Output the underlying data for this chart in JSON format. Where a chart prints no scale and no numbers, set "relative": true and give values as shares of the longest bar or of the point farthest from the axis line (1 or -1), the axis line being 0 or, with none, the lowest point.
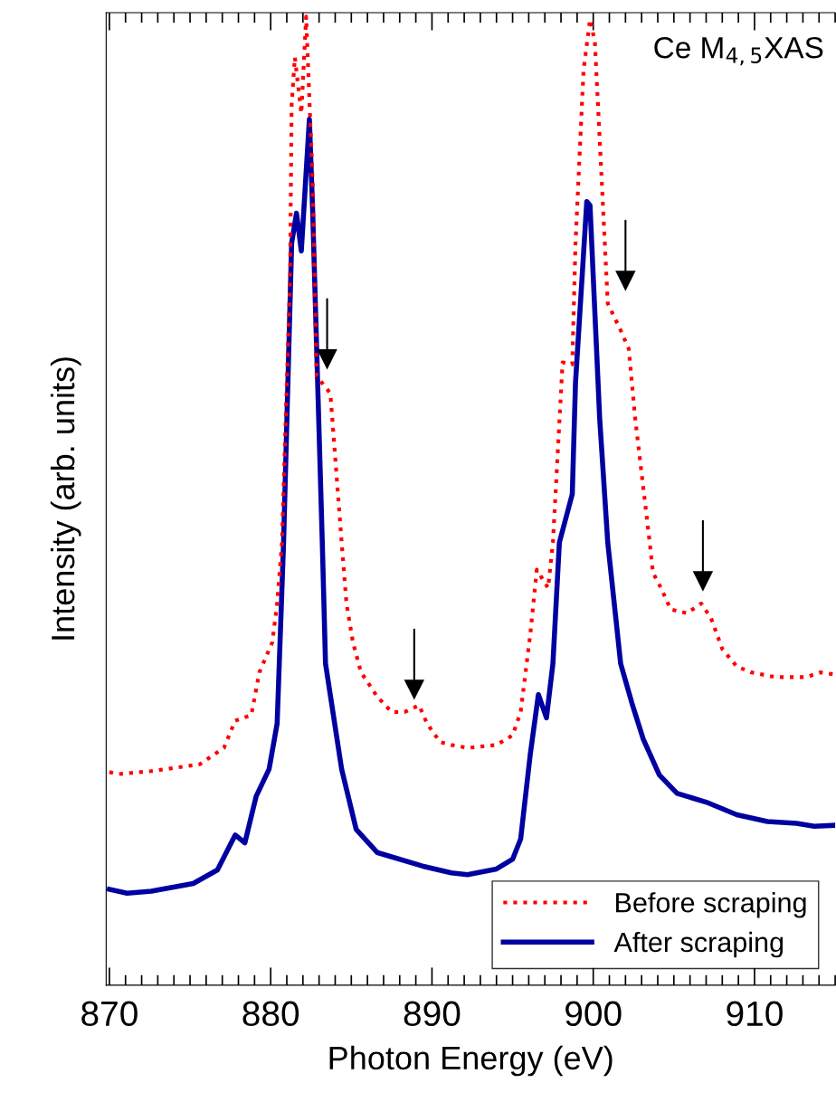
{
  "chart_data": {
    "type": "line",
    "relative": true,
    "xlabel": "Photon Energy (eV)",
    "ylabel": "Intensity (arb. units)",
    "annotations": [
      "Ce M$_{4,5}$XAS"
    ],
    "xlim": [
      869.8,
      915
    ],
    "xticks": [
      870,
      {
        "value": 871,
        "label": null
      },
      {
        "value": 872,
        "label": null
      },
      {
        "value": 873,
        "label": null
      },
      {
        "value": 874,
        "label": null
      },
      {
        "value": 875,
        "label": null
      },
      {
        "value": 876,
        "label": null
      },
      {
        "value": 877,
        "label": null
      },
      {
        "value": 878,
        "label": null
      },
      {
        "value": 879,
        "label": null
      },
      880,
      {
        "value": 881,
        "label": null
      },
      {
        "value": 882,
        "label": null
      },
      {
        "value": 883,
        "label": null
      },
      {
        "value": 884,
        "label": null
      },
      {
        "value": 885,
        "label": null
      },
      {
        "value": 886,
        "label": null
      },
      {
        "value": 887,
        "label": null
      },
      {
        "value": 888,
        "label": null
      },
      {
        "value": 889,
        "label": null
      },
      890,
      {
        "value": 891,
        "label": null
      },
      {
        "value": 892,
        "label": null
      },
      {
        "value": 893,
        "label": null
      },
      {
        "value": 894,
        "label": null
      },
      {
        "value": 895,
        "label": null
      },
      {
        "value": 896,
        "label": null
      },
      {
        "value": 897,
        "label": null
      },
      {
        "value": 898,
        "label": null
      },
      {
        "value": 899,
        "label": null
      },
      900,
      {
        "value": 901,
        "label": null
      },
      {
        "value": 902,
        "label": null
      },
      {
        "value": 903,
        "label": null
      },
      {
        "value": 904,
        "label": null
      },
      {
        "value": 905,
        "label": null
      },
      {
        "value": 906,
        "label": null
      },
      {
        "value": 907,
        "label": null
      },
      {
        "value": 908,
        "label": null
      },
      {
        "value": 909,
        "label": null
      },
      910,
      {
        "value": 911,
        "label": null
      },
      {
        "value": 912,
        "label": null
      },
      {
        "value": 913,
        "label": null
      },
      {
        "value": 914,
        "label": null
      },
      {
        "value": 915,
        "label": null
      }
    ],
    "grid": false,
    "legend": "bottom right",
    "marker": "none",
    "series": [
      {
        "name": "Before scraping",
        "color": "#ff0000",
        "line_style": "dotted",
        "x": [
          870,
          870.6,
          872.6,
          875.6,
          877.1,
          877.8,
          878.8,
          879.3,
          880.1,
          880.4,
          880.7,
          881.2,
          881.3,
          881.5,
          881.9,
          882.2,
          882.6,
          882.85,
          883.7,
          884.4,
          884.7,
          885.1,
          885.6,
          886.6,
          887.5,
          888.3,
          889.2,
          889.7,
          890.5,
          891.2,
          892.2,
          894.0,
          895.0,
          895.5,
          896.1,
          896.5,
          897.2,
          897.5,
          898.1,
          898.7,
          898.9,
          899.4,
          899.8,
          900.1,
          900.4,
          900.9,
          901.7,
          902.2,
          902.6,
          903.5,
          903.7,
          904.2,
          904.8,
          905.8,
          906.7,
          907.3,
          908.0,
          908.9,
          909.8,
          911.3,
          913.2,
          914.1,
          914.9
        ],
        "values": [
          0.22,
          0.218,
          0.221,
          0.228,
          0.245,
          0.273,
          0.279,
          0.323,
          0.354,
          0.394,
          0.457,
          0.729,
          0.909,
          0.958,
          0.9,
          1.0,
          0.83,
          0.629,
          0.611,
          0.457,
          0.394,
          0.354,
          0.323,
          0.298,
          0.282,
          0.282,
          0.289,
          0.27,
          0.251,
          0.248,
          0.245,
          0.248,
          0.258,
          0.282,
          0.363,
          0.429,
          0.41,
          0.457,
          0.643,
          0.641,
          0.766,
          0.945,
          0.997,
          0.974,
          0.873,
          0.704,
          0.676,
          0.657,
          0.585,
          0.457,
          0.426,
          0.41,
          0.388,
          0.384,
          0.394,
          0.379,
          0.347,
          0.329,
          0.323,
          0.318,
          0.318,
          0.323,
          0.321
        ]
      },
      {
        "name": "After scraping",
        "color": "#0000a0",
        "line_style": "solid",
        "x": [
          870,
          871.1,
          872.6,
          875.2,
          876.7,
          877.8,
          878.4,
          879.1,
          879.9,
          880.4,
          880.8,
          881.3,
          881.6,
          881.9,
          882.4,
          882.6,
          883.2,
          883.4,
          884.4,
          885.3,
          886.6,
          889.4,
          891.2,
          892.2,
          894.0,
          895.0,
          895.5,
          896.1,
          896.6,
          897.1,
          897.5,
          897.9,
          898.7,
          898.9,
          899.6,
          899.8,
          900.4,
          900.9,
          901.7,
          902.4,
          903.1,
          904.1,
          905.2,
          907.0,
          908.9,
          910.8,
          912.6,
          913.7,
          914.9
        ],
        "values": [
          0.099,
          0.095,
          0.097,
          0.105,
          0.119,
          0.155,
          0.147,
          0.195,
          0.223,
          0.27,
          0.457,
          0.766,
          0.797,
          0.758,
          0.894,
          0.801,
          0.457,
          0.332,
          0.223,
          0.161,
          0.137,
          0.123,
          0.116,
          0.114,
          0.12,
          0.13,
          0.151,
          0.239,
          0.3,
          0.276,
          0.332,
          0.457,
          0.507,
          0.622,
          0.809,
          0.805,
          0.585,
          0.457,
          0.332,
          0.291,
          0.254,
          0.217,
          0.198,
          0.189,
          0.176,
          0.169,
          0.167,
          0.164,
          0.165
        ]
      },
      {
        "type": "scatter",
        "color": "#000000",
        "marker": "triangle",
        "x": [
          883.5,
          888.9,
          902.0,
          906.8
        ],
        "values": [
          0.646,
          0.305,
          0.727,
          0.417
        ]
      }
    ]
  }
}
